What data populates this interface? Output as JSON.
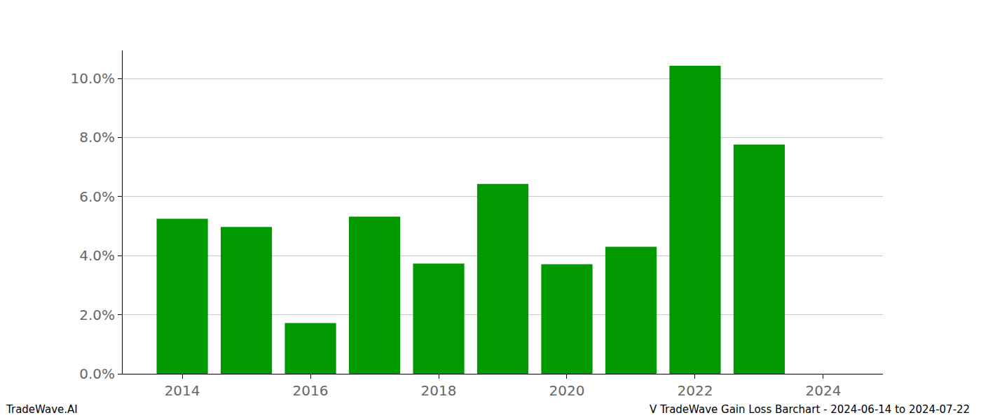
{
  "chart_data": {
    "type": "bar",
    "x": [
      2014,
      2015,
      2016,
      2017,
      2018,
      2019,
      2020,
      2021,
      2022,
      2023
    ],
    "values": [
      5.25,
      4.97,
      1.72,
      5.32,
      3.73,
      6.43,
      3.71,
      4.3,
      10.43,
      7.76
    ],
    "color": "#009900",
    "xlim": [
      2013.07,
      2024.93
    ],
    "xticks": [
      2014,
      2016,
      2018,
      2020,
      2022,
      2024
    ],
    "ylim": [
      0,
      10.95
    ],
    "yticks": [
      {
        "value": 0,
        "label": "0.0%"
      },
      {
        "value": 2,
        "label": "2.0%"
      },
      {
        "value": 4,
        "label": "4.0%"
      },
      {
        "value": 6,
        "label": "6.0%"
      },
      {
        "value": 8,
        "label": "8.0%"
      },
      {
        "value": 10,
        "label": "10.0%"
      }
    ],
    "grid": true,
    "annotations": [
      "TradeWave.AI",
      "V TradeWave Gain Loss Barchart - 2024-06-14 to 2024-07-22"
    ]
  }
}
